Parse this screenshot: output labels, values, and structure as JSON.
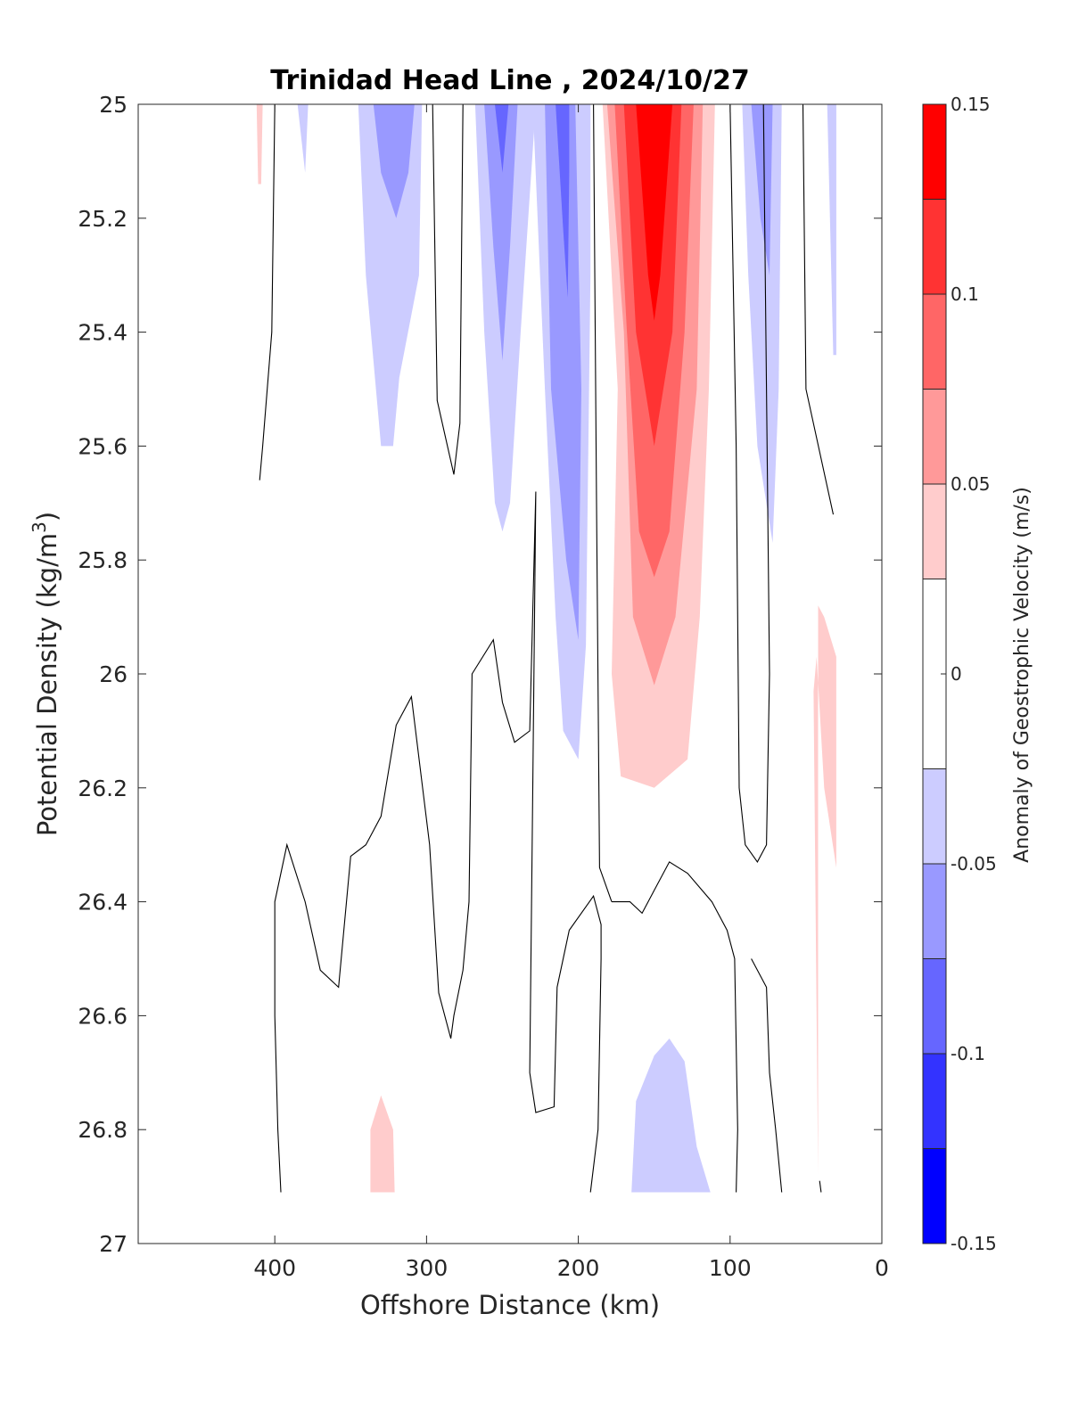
{
  "chart_data": {
    "type": "contourf",
    "title": "Trinidad Head Line , 2024/10/27",
    "xlabel": "Offshore Distance (km)",
    "ylabel_main": "Potential Density (kg/m",
    "ylabel_sup": "3",
    "ylabel_end": ")",
    "xlim": [
      490,
      0
    ],
    "ylim": [
      25,
      27
    ],
    "y_reversed": true,
    "x_reversed": true,
    "xticks": [
      400,
      300,
      200,
      100,
      0
    ],
    "xtick_labels": [
      "400",
      "300",
      "200",
      "100",
      "0"
    ],
    "yticks": [
      25,
      25.2,
      25.4,
      25.6,
      25.8,
      26,
      26.2,
      26.4,
      26.6,
      26.8,
      27
    ],
    "ytick_labels": [
      "25",
      "25.2",
      "25.4",
      "25.6",
      "25.8",
      "26",
      "26.2",
      "26.4",
      "26.6",
      "26.8",
      "27"
    ],
    "colorbar": {
      "label": "Anomaly of Geostrophic Velocity (m/s)",
      "range": [
        -0.15,
        0.15
      ],
      "ticks": [
        -0.15,
        -0.1,
        -0.05,
        0,
        0.05,
        0.1,
        0.15
      ],
      "tick_labels": [
        "-0.15",
        "-0.1",
        "-0.05",
        "0",
        "0.05",
        "0.1",
        "0.15"
      ],
      "levels": [
        -0.15,
        -0.125,
        -0.1,
        -0.075,
        -0.05,
        -0.025,
        0.025,
        0.05,
        0.075,
        0.1,
        0.125,
        0.15
      ],
      "colors": [
        "#0000ff",
        "#3333ff",
        "#6666ff",
        "#9999ff",
        "#ccccff",
        "#ffffff",
        "#ffcccc",
        "#ff9999",
        "#ff6666",
        "#ff3333",
        "#ff0000"
      ]
    },
    "filled_regions": [
      {
        "name": "red-core-0.025",
        "color": "#ffcccc",
        "points": [
          [
            184,
            25
          ],
          [
            174,
            25.5
          ],
          [
            178,
            26.0
          ],
          [
            172,
            26.18
          ],
          [
            150,
            26.2
          ],
          [
            128,
            26.15
          ],
          [
            120,
            25.9
          ],
          [
            114,
            25.5
          ],
          [
            110,
            25
          ]
        ]
      },
      {
        "name": "red-core-0.05",
        "color": "#ff9999",
        "points": [
          [
            181,
            25
          ],
          [
            170,
            25.4
          ],
          [
            164,
            25.9
          ],
          [
            150,
            26.02
          ],
          [
            136,
            25.9
          ],
          [
            122,
            25.5
          ],
          [
            118,
            25
          ]
        ]
      },
      {
        "name": "red-core-0.075",
        "color": "#ff6666",
        "points": [
          [
            176,
            25
          ],
          [
            168,
            25.4
          ],
          [
            160,
            25.75
          ],
          [
            150,
            25.83
          ],
          [
            140,
            25.75
          ],
          [
            130,
            25.4
          ],
          [
            124,
            25
          ]
        ]
      },
      {
        "name": "red-core-0.1",
        "color": "#ff3333",
        "points": [
          [
            170,
            25
          ],
          [
            162,
            25.4
          ],
          [
            150,
            25.6
          ],
          [
            138,
            25.4
          ],
          [
            132,
            25
          ]
        ]
      },
      {
        "name": "red-core-0.125",
        "color": "#ff0000",
        "points": [
          [
            162,
            25
          ],
          [
            154,
            25.3
          ],
          [
            150,
            25.38
          ],
          [
            146,
            25.3
          ],
          [
            138,
            25
          ]
        ]
      },
      {
        "name": "blue-band-a",
        "color": "#ccccff",
        "points": [
          [
            345,
            25
          ],
          [
            340,
            25.3
          ],
          [
            330,
            25.6
          ],
          [
            322,
            25.6
          ],
          [
            318,
            25.48
          ],
          [
            305,
            25.3
          ],
          [
            303,
            25
          ]
        ]
      },
      {
        "name": "blue-band-a-core",
        "color": "#9999ff",
        "points": [
          [
            335,
            25
          ],
          [
            330,
            25.12
          ],
          [
            320,
            25.2
          ],
          [
            312,
            25.12
          ],
          [
            308,
            25
          ]
        ]
      },
      {
        "name": "blue-band-b",
        "color": "#ccccff",
        "points": [
          [
            268,
            25
          ],
          [
            262,
            25.4
          ],
          [
            255,
            25.7
          ],
          [
            250,
            25.75
          ],
          [
            245,
            25.7
          ],
          [
            238,
            25.4
          ],
          [
            228,
            25
          ]
        ]
      },
      {
        "name": "blue-band-b-core",
        "color": "#9999ff",
        "points": [
          [
            262,
            25
          ],
          [
            256,
            25.25
          ],
          [
            250,
            25.45
          ],
          [
            245,
            25.25
          ],
          [
            240,
            25
          ]
        ]
      },
      {
        "name": "blue-band-b-peak",
        "color": "#6666ff",
        "points": [
          [
            255,
            25
          ],
          [
            250,
            25.12
          ],
          [
            246,
            25
          ]
        ]
      },
      {
        "name": "blue-band-c",
        "color": "#ccccff",
        "points": [
          [
            230,
            25
          ],
          [
            222,
            25.5
          ],
          [
            215,
            25.9
          ],
          [
            210,
            26.1
          ],
          [
            200,
            26.15
          ],
          [
            195,
            25.95
          ],
          [
            192,
            25.3
          ],
          [
            192,
            25
          ]
        ]
      },
      {
        "name": "blue-band-c-core",
        "color": "#9999ff",
        "points": [
          [
            222,
            25
          ],
          [
            218,
            25.5
          ],
          [
            208,
            25.8
          ],
          [
            200,
            25.94
          ],
          [
            198,
            25.5
          ],
          [
            202,
            25
          ]
        ]
      },
      {
        "name": "blue-band-c-peak",
        "color": "#6666ff",
        "points": [
          [
            215,
            25
          ],
          [
            210,
            25.22
          ],
          [
            207,
            25.34
          ],
          [
            206,
            25.12
          ],
          [
            206,
            25
          ]
        ]
      },
      {
        "name": "blue-band-d",
        "color": "#ccccff",
        "points": [
          [
            92,
            25
          ],
          [
            88,
            25.3
          ],
          [
            82,
            25.6
          ],
          [
            72,
            25.77
          ],
          [
            68,
            25.5
          ],
          [
            66,
            25
          ]
        ]
      },
      {
        "name": "blue-band-d-core",
        "color": "#9999ff",
        "points": [
          [
            86,
            25
          ],
          [
            80,
            25.2
          ],
          [
            74,
            25.3
          ],
          [
            72,
            25
          ]
        ]
      },
      {
        "name": "blue-deep",
        "color": "#ccccff",
        "points": [
          [
            165,
            26.91
          ],
          [
            162,
            26.75
          ],
          [
            150,
            26.67
          ],
          [
            140,
            26.64
          ],
          [
            130,
            26.68
          ],
          [
            122,
            26.83
          ],
          [
            113,
            26.91
          ]
        ]
      },
      {
        "name": "red-deep",
        "color": "#ffcccc",
        "points": [
          [
            337,
            26.91
          ],
          [
            337,
            26.8
          ],
          [
            330,
            26.74
          ],
          [
            322,
            26.8
          ],
          [
            321,
            26.91
          ]
        ]
      },
      {
        "name": "red-coast",
        "color": "#ffcccc",
        "points": [
          [
            42,
            26.88
          ],
          [
            45,
            26.03
          ],
          [
            43,
            25.97
          ],
          [
            38,
            26.2
          ],
          [
            30,
            26.34
          ],
          [
            30,
            25.97
          ],
          [
            38,
            25.9
          ],
          [
            42,
            25.88
          ]
        ]
      },
      {
        "name": "red-offshore",
        "color": "#ffcccc",
        "points": [
          [
            412,
            25
          ],
          [
            411,
            25.14
          ],
          [
            409,
            25.14
          ],
          [
            408,
            25
          ]
        ]
      },
      {
        "name": "blue-thin-1",
        "color": "#ccccff",
        "points": [
          [
            385,
            25
          ],
          [
            380,
            25.12
          ],
          [
            378,
            25
          ]
        ]
      },
      {
        "name": "blue-thin-2",
        "color": "#ccccff",
        "points": [
          [
            36,
            25
          ],
          [
            32,
            25.44
          ],
          [
            30,
            25.44
          ],
          [
            30,
            25
          ]
        ]
      }
    ],
    "zero_contours": [
      {
        "name": "zero-a",
        "points": [
          [
            400,
            25
          ],
          [
            402,
            25.4
          ],
          [
            408,
            25.6
          ],
          [
            410,
            25.66
          ]
        ]
      },
      {
        "name": "zero-b",
        "points": [
          [
            296,
            25
          ],
          [
            293,
            25.52
          ],
          [
            282,
            25.65
          ],
          [
            278,
            25.56
          ],
          [
            276,
            25
          ]
        ]
      },
      {
        "name": "zero-c",
        "points": [
          [
            190,
            25
          ],
          [
            188,
            25.7
          ],
          [
            186,
            26.34
          ],
          [
            178,
            26.4
          ]
        ]
      },
      {
        "name": "zero-d",
        "points": [
          [
            100,
            25
          ],
          [
            96,
            25.6
          ],
          [
            94,
            26.2
          ],
          [
            90,
            26.3
          ],
          [
            82,
            26.33
          ],
          [
            76,
            26.3
          ],
          [
            74,
            26.0
          ],
          [
            78,
            25
          ]
        ]
      },
      {
        "name": "zero-e",
        "points": [
          [
            52,
            25
          ],
          [
            50,
            25.5
          ],
          [
            32,
            25.72
          ]
        ]
      },
      {
        "name": "zero-f",
        "points": [
          [
            396,
            26.91
          ],
          [
            398,
            26.8
          ],
          [
            400,
            26.6
          ],
          [
            400,
            26.4
          ],
          [
            392,
            26.3
          ],
          [
            380,
            26.4
          ],
          [
            370,
            26.52
          ],
          [
            358,
            26.55
          ],
          [
            350,
            26.32
          ],
          [
            340,
            26.3
          ],
          [
            330,
            26.25
          ],
          [
            320,
            26.09
          ],
          [
            310,
            26.04
          ],
          [
            298,
            26.3
          ],
          [
            292,
            26.56
          ],
          [
            284,
            26.64
          ],
          [
            282,
            26.6
          ],
          [
            276,
            26.52
          ],
          [
            272,
            26.4
          ],
          [
            270,
            26.0
          ],
          [
            256,
            25.94
          ],
          [
            250,
            26.05
          ],
          [
            242,
            26.12
          ],
          [
            232,
            26.1
          ],
          [
            228,
            25.68
          ],
          [
            230,
            26.2
          ],
          [
            232,
            26.7
          ],
          [
            228,
            26.77
          ],
          [
            216,
            26.76
          ],
          [
            214,
            26.55
          ],
          [
            206,
            26.45
          ],
          [
            190,
            26.39
          ],
          [
            185,
            26.44
          ],
          [
            185,
            26.5
          ],
          [
            187,
            26.8
          ],
          [
            192,
            26.91
          ]
        ]
      },
      {
        "name": "zero-g",
        "points": [
          [
            178,
            26.4
          ],
          [
            166,
            26.4
          ],
          [
            158,
            26.42
          ],
          [
            150,
            26.38
          ],
          [
            140,
            26.33
          ],
          [
            128,
            26.35
          ],
          [
            112,
            26.4
          ],
          [
            102,
            26.45
          ],
          [
            97,
            26.5
          ],
          [
            95,
            26.8
          ],
          [
            96,
            26.91
          ]
        ]
      },
      {
        "name": "zero-h",
        "points": [
          [
            66,
            26.91
          ],
          [
            70,
            26.8
          ],
          [
            74,
            26.7
          ],
          [
            76,
            26.55
          ],
          [
            86,
            26.5
          ]
        ]
      },
      {
        "name": "zero-i",
        "points": [
          [
            40,
            26.91
          ],
          [
            41,
            26.89
          ]
        ]
      }
    ]
  }
}
